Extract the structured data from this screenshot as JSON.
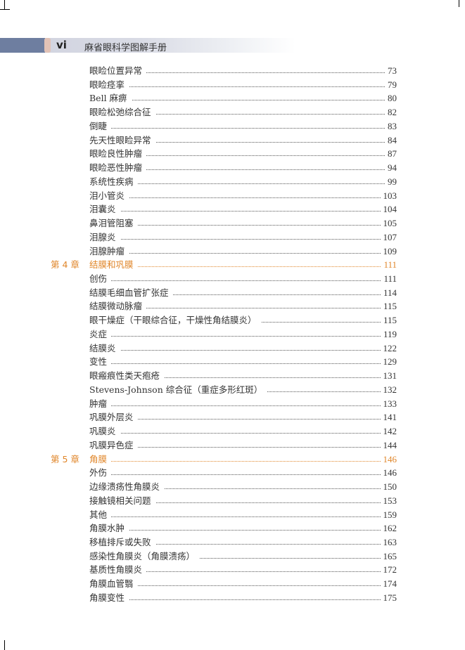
{
  "header": {
    "page_number": "vi",
    "book_title": "麻省眼科学图解手册"
  },
  "colors": {
    "chapter": "#e0862a",
    "header_block": "#6e7ea0",
    "header_tab": "#e2c2b6"
  },
  "toc": [
    {
      "title": "眼睑位置异常",
      "page": "73"
    },
    {
      "title": "眼睑痉挛",
      "page": "79"
    },
    {
      "title": "Bell 麻痹",
      "page": "80"
    },
    {
      "title": "眼睑松弛综合征",
      "page": "82"
    },
    {
      "title": "倒睫",
      "page": "83"
    },
    {
      "title": "先天性眼睑异常",
      "page": "84"
    },
    {
      "title": "眼睑良性肿瘤",
      "page": "87"
    },
    {
      "title": "眼睑恶性肿瘤",
      "page": "94"
    },
    {
      "title": "系统性疾病",
      "page": "99"
    },
    {
      "title": "泪小管炎",
      "page": "103"
    },
    {
      "title": "泪囊炎",
      "page": "104"
    },
    {
      "title": "鼻泪管阻塞",
      "page": "105"
    },
    {
      "title": "泪腺炎",
      "page": "107"
    },
    {
      "title": "泪腺肿瘤",
      "page": "109"
    },
    {
      "chapter": "第 4 章",
      "title": "结膜和巩膜",
      "page": "111"
    },
    {
      "title": "创伤",
      "page": "111"
    },
    {
      "title": "结膜毛细血管扩张症",
      "page": "114"
    },
    {
      "title": "结膜微动脉瘤",
      "page": "115"
    },
    {
      "title": "眼干燥症（干眼综合征，干燥性角结膜炎）",
      "page": "115"
    },
    {
      "title": "炎症",
      "page": "119"
    },
    {
      "title": "结膜炎",
      "page": "122"
    },
    {
      "title": "变性",
      "page": "129"
    },
    {
      "title": "眼瘢痕性类天疱疮",
      "page": "131"
    },
    {
      "title": "Stevens-Johnson 综合征（重症多形红斑）",
      "page": "132"
    },
    {
      "title": "肿瘤",
      "page": "133"
    },
    {
      "title": "巩膜外层炎",
      "page": "141"
    },
    {
      "title": "巩膜炎",
      "page": "142"
    },
    {
      "title": "巩膜异色症",
      "page": "144"
    },
    {
      "chapter": "第 5 章",
      "title": "角膜",
      "page": "146"
    },
    {
      "title": "外伤",
      "page": "146"
    },
    {
      "title": "边缘溃疡性角膜炎",
      "page": "150"
    },
    {
      "title": "接触镜相关问题",
      "page": "153"
    },
    {
      "title": "其他",
      "page": "159"
    },
    {
      "title": "角膜水肿",
      "page": "162"
    },
    {
      "title": "移植排斥或失败",
      "page": "163"
    },
    {
      "title": "感染性角膜炎（角膜溃疡）",
      "page": "165"
    },
    {
      "title": "基质性角膜炎",
      "page": "172"
    },
    {
      "title": "角膜血管翳",
      "page": "174"
    },
    {
      "title": "角膜变性",
      "page": "175"
    }
  ]
}
